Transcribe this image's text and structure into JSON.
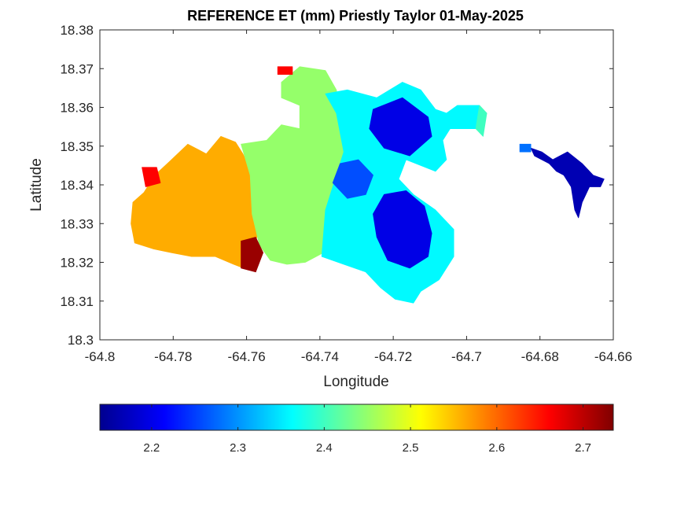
{
  "chart_data": {
    "type": "heatmap",
    "title": "REFERENCE ET (mm) Priestly Taylor 01-May-2025",
    "xlabel": "Longitude",
    "ylabel": "Latitude",
    "xlim": [
      -64.8,
      -64.66
    ],
    "ylim": [
      18.3,
      18.38
    ],
    "xticks": [
      "-64.8",
      "-64.78",
      "-64.76",
      "-64.74",
      "-64.72",
      "-64.7",
      "-64.68",
      "-64.66"
    ],
    "yticks": [
      "18.3",
      "18.31",
      "18.32",
      "18.33",
      "18.34",
      "18.35",
      "18.36",
      "18.37",
      "18.38"
    ],
    "colorbar": {
      "colormap": "jet",
      "clim": [
        2.14,
        2.735
      ],
      "ticks": [
        "2.2",
        "2.3",
        "2.4",
        "2.5",
        "2.6",
        "2.7"
      ],
      "orientation": "horizontal"
    },
    "grid": false,
    "regions": [
      {
        "name": "",
        "value": 2.56,
        "points": [
          [
            -64.791,
            18.3355
          ],
          [
            -64.788,
            18.338
          ],
          [
            -64.785,
            18.3425
          ],
          [
            -64.781,
            18.346
          ],
          [
            -64.776,
            18.3505
          ],
          [
            -64.771,
            18.348
          ],
          [
            -64.767,
            18.3525
          ],
          [
            -64.763,
            18.351
          ],
          [
            -64.761,
            18.348
          ],
          [
            -64.7585,
            18.343
          ],
          [
            -64.757,
            18.335
          ],
          [
            -64.7565,
            18.3285
          ],
          [
            -64.758,
            18.324
          ],
          [
            -64.7595,
            18.318
          ],
          [
            -64.7635,
            18.3195
          ],
          [
            -64.7685,
            18.3215
          ],
          [
            -64.775,
            18.3215
          ],
          [
            -64.7805,
            18.3225
          ],
          [
            -64.7855,
            18.3235
          ],
          [
            -64.7905,
            18.325
          ],
          [
            -64.7915,
            18.33
          ]
        ]
      },
      {
        "name": "",
        "value": 2.45,
        "points": [
          [
            -64.7615,
            18.3505
          ],
          [
            -64.7545,
            18.3515
          ],
          [
            -64.7505,
            18.3555
          ],
          [
            -64.7455,
            18.3545
          ],
          [
            -64.7455,
            18.3605
          ],
          [
            -64.7505,
            18.3625
          ],
          [
            -64.7505,
            18.3665
          ],
          [
            -64.7455,
            18.3705
          ],
          [
            -64.7385,
            18.3695
          ],
          [
            -64.7355,
            18.3645
          ],
          [
            -64.7325,
            18.3485
          ],
          [
            -64.7375,
            18.3335
          ],
          [
            -64.739,
            18.3225
          ],
          [
            -64.744,
            18.32
          ],
          [
            -64.749,
            18.3195
          ],
          [
            -64.7535,
            18.3205
          ],
          [
            -64.7565,
            18.3245
          ],
          [
            -64.7585,
            18.3325
          ],
          [
            -64.759,
            18.3425
          ]
        ]
      },
      {
        "name": "",
        "value": 2.36,
        "points": [
          [
            -64.7385,
            18.3635
          ],
          [
            -64.7325,
            18.3645
          ],
          [
            -64.7245,
            18.3625
          ],
          [
            -64.7175,
            18.3665
          ],
          [
            -64.7125,
            18.3645
          ],
          [
            -64.7085,
            18.3595
          ],
          [
            -64.7055,
            18.3585
          ],
          [
            -64.7025,
            18.3605
          ],
          [
            -64.6965,
            18.3605
          ],
          [
            -64.6975,
            18.3545
          ],
          [
            -64.7045,
            18.3545
          ],
          [
            -64.7065,
            18.3515
          ],
          [
            -64.7055,
            18.3465
          ],
          [
            -64.7085,
            18.3435
          ],
          [
            -64.7165,
            18.3465
          ],
          [
            -64.7185,
            18.3415
          ],
          [
            -64.7145,
            18.3375
          ],
          [
            -64.7085,
            18.3335
          ],
          [
            -64.7035,
            18.3285
          ],
          [
            -64.7035,
            18.3215
          ],
          [
            -64.7075,
            18.3155
          ],
          [
            -64.7125,
            18.3125
          ],
          [
            -64.7145,
            18.3095
          ],
          [
            -64.7195,
            18.3105
          ],
          [
            -64.7235,
            18.3135
          ],
          [
            -64.7275,
            18.3175
          ],
          [
            -64.7335,
            18.3195
          ],
          [
            -64.7395,
            18.3215
          ],
          [
            -64.7385,
            18.3335
          ],
          [
            -64.7335,
            18.3485
          ],
          [
            -64.7355,
            18.3585
          ]
        ]
      },
      {
        "name": "",
        "value": 2.26,
        "points": [
          [
            -64.7345,
            18.3455
          ],
          [
            -64.7295,
            18.3465
          ],
          [
            -64.7255,
            18.3425
          ],
          [
            -64.7275,
            18.3375
          ],
          [
            -64.7325,
            18.3365
          ],
          [
            -64.7365,
            18.3405
          ]
        ]
      },
      {
        "name": "",
        "value": 2.2,
        "points": [
          [
            -64.7255,
            18.3595
          ],
          [
            -64.7175,
            18.3625
          ],
          [
            -64.7105,
            18.3575
          ],
          [
            -64.7095,
            18.3525
          ],
          [
            -64.7155,
            18.3475
          ],
          [
            -64.7225,
            18.3495
          ],
          [
            -64.7265,
            18.3545
          ]
        ]
      },
      {
        "name": "",
        "value": 2.2,
        "points": [
          [
            -64.7225,
            18.3375
          ],
          [
            -64.7165,
            18.3385
          ],
          [
            -64.7115,
            18.3345
          ],
          [
            -64.7095,
            18.3275
          ],
          [
            -64.7105,
            18.3215
          ],
          [
            -64.7155,
            18.3185
          ],
          [
            -64.7215,
            18.3205
          ],
          [
            -64.7245,
            18.3265
          ],
          [
            -64.7255,
            18.3325
          ]
        ]
      },
      {
        "name": "",
        "value": 2.72,
        "points": [
          [
            -64.7615,
            18.3255
          ],
          [
            -64.7575,
            18.3265
          ],
          [
            -64.7555,
            18.3225
          ],
          [
            -64.7575,
            18.3175
          ],
          [
            -64.7615,
            18.3185
          ]
        ]
      },
      {
        "name": "",
        "value": 2.66,
        "points": [
          [
            -64.7885,
            18.3445
          ],
          [
            -64.7845,
            18.3445
          ],
          [
            -64.7835,
            18.3405
          ],
          [
            -64.7875,
            18.3395
          ]
        ]
      },
      {
        "name": "",
        "value": 2.66,
        "points": [
          [
            -64.7515,
            18.3705
          ],
          [
            -64.7475,
            18.3705
          ],
          [
            -64.7475,
            18.3685
          ],
          [
            -64.7515,
            18.3685
          ]
        ]
      },
      {
        "name": "",
        "value": 2.17,
        "points": [
          [
            -64.6725,
            18.3485
          ],
          [
            -64.6685,
            18.3455
          ],
          [
            -64.6655,
            18.3425
          ],
          [
            -64.6625,
            18.3415
          ],
          [
            -64.6635,
            18.3395
          ],
          [
            -64.6665,
            18.3395
          ],
          [
            -64.6685,
            18.3355
          ],
          [
            -64.6695,
            18.3315
          ],
          [
            -64.6705,
            18.3335
          ],
          [
            -64.6715,
            18.3395
          ],
          [
            -64.6735,
            18.3425
          ],
          [
            -64.6755,
            18.3435
          ],
          [
            -64.6775,
            18.3455
          ],
          [
            -64.6815,
            18.3475
          ],
          [
            -64.6825,
            18.3495
          ],
          [
            -64.6795,
            18.3485
          ],
          [
            -64.6765,
            18.3465
          ]
        ]
      },
      {
        "name": "",
        "value": 2.28,
        "points": [
          [
            -64.6855,
            18.3505
          ],
          [
            -64.6825,
            18.3505
          ],
          [
            -64.6825,
            18.3485
          ],
          [
            -64.6855,
            18.3485
          ]
        ]
      },
      {
        "name": "",
        "value": 2.4,
        "points": [
          [
            -64.6965,
            18.3605
          ],
          [
            -64.6945,
            18.3585
          ],
          [
            -64.6955,
            18.3525
          ],
          [
            -64.6975,
            18.3545
          ]
        ]
      }
    ]
  }
}
